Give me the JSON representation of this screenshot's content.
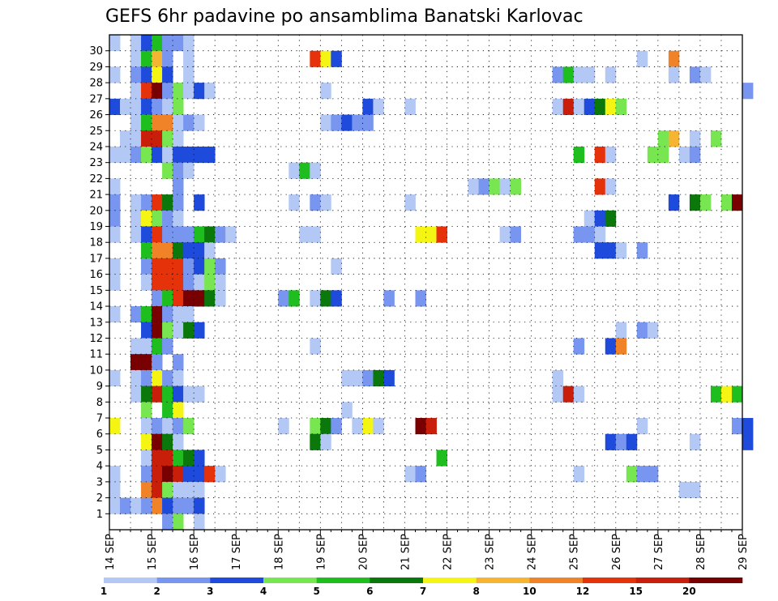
{
  "chart_data": {
    "type": "heatmap",
    "title": "GEFS 6hr padavine po ansamblima Banatski Karlovac",
    "x_labels": [
      "14 SEP",
      "15 SEP",
      "16 SEP",
      "17 SEP",
      "18 SEP",
      "19 SEP",
      "20 SEP",
      "21 SEP",
      "22 SEP",
      "23 SEP",
      "24 SEP",
      "25 SEP",
      "26 SEP",
      "27 SEP",
      "28 SEP",
      "29 SEP"
    ],
    "y_labels": [
      "1",
      "2",
      "3",
      "4",
      "5",
      "6",
      "7",
      "8",
      "9",
      "10",
      "11",
      "12",
      "13",
      "14",
      "15",
      "16",
      "17",
      "18",
      "19",
      "20",
      "21",
      "22",
      "23",
      "24",
      "25",
      "26",
      "27",
      "28",
      "29",
      "30"
    ],
    "x_unit": "6h step (4 per day)",
    "y_unit": "ensemble member",
    "grid": "dotted",
    "colorbar": {
      "levels": [
        "1",
        "2",
        "3",
        "4",
        "5",
        "6",
        "7",
        "8",
        "10",
        "12",
        "15",
        "20"
      ],
      "colors": [
        "#b4c8f5",
        "#7896f0",
        "#1e4bdc",
        "#78e650",
        "#1ebe1e",
        "#0a780a",
        "#f5f514",
        "#f5b432",
        "#f08228",
        "#e6320a",
        "#c81e0a",
        "#780000"
      ]
    },
    "points": [
      [
        0,
        30,
        1
      ],
      [
        2,
        30,
        1
      ],
      [
        3,
        30,
        3
      ],
      [
        4,
        30,
        5
      ],
      [
        5,
        30,
        2
      ],
      [
        6,
        30,
        2
      ],
      [
        7,
        30,
        1
      ],
      [
        2,
        29,
        1
      ],
      [
        3,
        29,
        5
      ],
      [
        4,
        29,
        8
      ],
      [
        5,
        29,
        2
      ],
      [
        7,
        29,
        1
      ],
      [
        19,
        29,
        10
      ],
      [
        20,
        29,
        7
      ],
      [
        21,
        29,
        3
      ],
      [
        50,
        29,
        1
      ],
      [
        53,
        29,
        9
      ],
      [
        0,
        28,
        1
      ],
      [
        2,
        28,
        2
      ],
      [
        3,
        28,
        3
      ],
      [
        4,
        28,
        7
      ],
      [
        5,
        28,
        3
      ],
      [
        7,
        28,
        1
      ],
      [
        42,
        28,
        2
      ],
      [
        43,
        28,
        5
      ],
      [
        44,
        28,
        1
      ],
      [
        45,
        28,
        1
      ],
      [
        47,
        28,
        1
      ],
      [
        53,
        28,
        1
      ],
      [
        55,
        28,
        2
      ],
      [
        56,
        28,
        1
      ],
      [
        2,
        27,
        1
      ],
      [
        3,
        27,
        10
      ],
      [
        4,
        27,
        12
      ],
      [
        5,
        27,
        2
      ],
      [
        6,
        27,
        4
      ],
      [
        7,
        27,
        1
      ],
      [
        8,
        27,
        3
      ],
      [
        9,
        27,
        1
      ],
      [
        20,
        27,
        1
      ],
      [
        60,
        27,
        2
      ],
      [
        0,
        26,
        3
      ],
      [
        1,
        26,
        1
      ],
      [
        2,
        26,
        1
      ],
      [
        3,
        26,
        3
      ],
      [
        4,
        26,
        2
      ],
      [
        5,
        26,
        1
      ],
      [
        6,
        26,
        4
      ],
      [
        24,
        26,
        3
      ],
      [
        25,
        26,
        1
      ],
      [
        28,
        26,
        1
      ],
      [
        42,
        26,
        1
      ],
      [
        43,
        26,
        11
      ],
      [
        44,
        26,
        1
      ],
      [
        45,
        26,
        3
      ],
      [
        46,
        26,
        6
      ],
      [
        47,
        26,
        7
      ],
      [
        48,
        26,
        4
      ],
      [
        2,
        25,
        1
      ],
      [
        3,
        25,
        5
      ],
      [
        4,
        25,
        9
      ],
      [
        5,
        25,
        9
      ],
      [
        6,
        25,
        1
      ],
      [
        7,
        25,
        2
      ],
      [
        8,
        25,
        1
      ],
      [
        20,
        25,
        1
      ],
      [
        21,
        25,
        2
      ],
      [
        22,
        25,
        3
      ],
      [
        23,
        25,
        2
      ],
      [
        24,
        25,
        2
      ],
      [
        1,
        24,
        1
      ],
      [
        2,
        24,
        1
      ],
      [
        3,
        24,
        11
      ],
      [
        4,
        24,
        11
      ],
      [
        5,
        24,
        4
      ],
      [
        6,
        24,
        1
      ],
      [
        52,
        24,
        4
      ],
      [
        53,
        24,
        8
      ],
      [
        55,
        24,
        1
      ],
      [
        57,
        24,
        4
      ],
      [
        0,
        23,
        1
      ],
      [
        1,
        23,
        1
      ],
      [
        2,
        23,
        2
      ],
      [
        3,
        23,
        4
      ],
      [
        4,
        23,
        3
      ],
      [
        5,
        23,
        1
      ],
      [
        6,
        23,
        3
      ],
      [
        7,
        23,
        3
      ],
      [
        8,
        23,
        3
      ],
      [
        9,
        23,
        3
      ],
      [
        44,
        23,
        5
      ],
      [
        46,
        23,
        10
      ],
      [
        47,
        23,
        1
      ],
      [
        51,
        23,
        4
      ],
      [
        52,
        23,
        4
      ],
      [
        54,
        23,
        1
      ],
      [
        55,
        23,
        2
      ],
      [
        5,
        22,
        4
      ],
      [
        6,
        22,
        2
      ],
      [
        7,
        22,
        1
      ],
      [
        17,
        22,
        1
      ],
      [
        18,
        22,
        5
      ],
      [
        19,
        22,
        1
      ],
      [
        0,
        21,
        1
      ],
      [
        6,
        21,
        2
      ],
      [
        34,
        21,
        1
      ],
      [
        35,
        21,
        2
      ],
      [
        36,
        21,
        4
      ],
      [
        37,
        21,
        1
      ],
      [
        38,
        21,
        4
      ],
      [
        46,
        21,
        10
      ],
      [
        47,
        21,
        1
      ],
      [
        0,
        20,
        2
      ],
      [
        2,
        20,
        1
      ],
      [
        3,
        20,
        2
      ],
      [
        4,
        20,
        10
      ],
      [
        5,
        20,
        6
      ],
      [
        6,
        20,
        2
      ],
      [
        8,
        20,
        3
      ],
      [
        17,
        20,
        1
      ],
      [
        19,
        20,
        2
      ],
      [
        20,
        20,
        1
      ],
      [
        28,
        20,
        1
      ],
      [
        53,
        20,
        3
      ],
      [
        55,
        20,
        6
      ],
      [
        56,
        20,
        4
      ],
      [
        58,
        20,
        4
      ],
      [
        59,
        20,
        12
      ],
      [
        0,
        19,
        2
      ],
      [
        2,
        19,
        1
      ],
      [
        3,
        19,
        7
      ],
      [
        4,
        19,
        4
      ],
      [
        5,
        19,
        2
      ],
      [
        6,
        19,
        1
      ],
      [
        45,
        19,
        1
      ],
      [
        46,
        19,
        3
      ],
      [
        47,
        19,
        6
      ],
      [
        0,
        18,
        1
      ],
      [
        2,
        18,
        1
      ],
      [
        3,
        18,
        3
      ],
      [
        4,
        18,
        10
      ],
      [
        5,
        18,
        2
      ],
      [
        6,
        18,
        2
      ],
      [
        7,
        18,
        2
      ],
      [
        8,
        18,
        5
      ],
      [
        9,
        18,
        6
      ],
      [
        10,
        18,
        2
      ],
      [
        11,
        18,
        1
      ],
      [
        18,
        18,
        1
      ],
      [
        19,
        18,
        1
      ],
      [
        29,
        18,
        7
      ],
      [
        30,
        18,
        7
      ],
      [
        31,
        18,
        10
      ],
      [
        37,
        18,
        1
      ],
      [
        38,
        18,
        2
      ],
      [
        44,
        18,
        2
      ],
      [
        45,
        18,
        2
      ],
      [
        46,
        18,
        1
      ],
      [
        3,
        17,
        5
      ],
      [
        4,
        17,
        9
      ],
      [
        5,
        17,
        9
      ],
      [
        6,
        17,
        6
      ],
      [
        7,
        17,
        3
      ],
      [
        8,
        17,
        3
      ],
      [
        9,
        17,
        1
      ],
      [
        46,
        17,
        3
      ],
      [
        47,
        17,
        3
      ],
      [
        48,
        17,
        1
      ],
      [
        50,
        17,
        2
      ],
      [
        0,
        16,
        1
      ],
      [
        3,
        16,
        2
      ],
      [
        4,
        16,
        10
      ],
      [
        5,
        16,
        10
      ],
      [
        6,
        16,
        10
      ],
      [
        7,
        16,
        2
      ],
      [
        8,
        16,
        3
      ],
      [
        9,
        16,
        4
      ],
      [
        10,
        16,
        2
      ],
      [
        21,
        16,
        1
      ],
      [
        0,
        15,
        1
      ],
      [
        3,
        15,
        1
      ],
      [
        4,
        15,
        10
      ],
      [
        5,
        15,
        10
      ],
      [
        6,
        15,
        10
      ],
      [
        7,
        15,
        2
      ],
      [
        8,
        15,
        1
      ],
      [
        9,
        15,
        4
      ],
      [
        10,
        15,
        1
      ],
      [
        4,
        14,
        2
      ],
      [
        5,
        14,
        5
      ],
      [
        6,
        14,
        10
      ],
      [
        7,
        14,
        12
      ],
      [
        8,
        14,
        12
      ],
      [
        9,
        14,
        6
      ],
      [
        10,
        14,
        1
      ],
      [
        16,
        14,
        2
      ],
      [
        17,
        14,
        5
      ],
      [
        19,
        14,
        1
      ],
      [
        20,
        14,
        6
      ],
      [
        21,
        14,
        3
      ],
      [
        26,
        14,
        2
      ],
      [
        29,
        14,
        2
      ],
      [
        0,
        13,
        1
      ],
      [
        2,
        13,
        2
      ],
      [
        3,
        13,
        5
      ],
      [
        4,
        13,
        12
      ],
      [
        5,
        13,
        2
      ],
      [
        6,
        13,
        1
      ],
      [
        7,
        13,
        1
      ],
      [
        3,
        12,
        3
      ],
      [
        4,
        12,
        12
      ],
      [
        5,
        12,
        4
      ],
      [
        6,
        12,
        1
      ],
      [
        7,
        12,
        6
      ],
      [
        8,
        12,
        3
      ],
      [
        48,
        12,
        1
      ],
      [
        50,
        12,
        2
      ],
      [
        51,
        12,
        1
      ],
      [
        2,
        11,
        1
      ],
      [
        3,
        11,
        1
      ],
      [
        4,
        11,
        5
      ],
      [
        5,
        11,
        2
      ],
      [
        19,
        11,
        1
      ],
      [
        44,
        11,
        2
      ],
      [
        47,
        11,
        3
      ],
      [
        48,
        11,
        9
      ],
      [
        2,
        10,
        12
      ],
      [
        3,
        10,
        12
      ],
      [
        4,
        10,
        2
      ],
      [
        6,
        10,
        2
      ],
      [
        0,
        9,
        1
      ],
      [
        2,
        9,
        1
      ],
      [
        3,
        9,
        2
      ],
      [
        4,
        9,
        7
      ],
      [
        5,
        9,
        2
      ],
      [
        6,
        9,
        1
      ],
      [
        22,
        9,
        1
      ],
      [
        23,
        9,
        1
      ],
      [
        24,
        9,
        2
      ],
      [
        25,
        9,
        6
      ],
      [
        26,
        9,
        3
      ],
      [
        42,
        9,
        1
      ],
      [
        2,
        8,
        1
      ],
      [
        3,
        8,
        6
      ],
      [
        4,
        8,
        11
      ],
      [
        5,
        8,
        5
      ],
      [
        6,
        8,
        3
      ],
      [
        7,
        8,
        1
      ],
      [
        8,
        8,
        1
      ],
      [
        42,
        8,
        1
      ],
      [
        43,
        8,
        11
      ],
      [
        44,
        8,
        1
      ],
      [
        57,
        8,
        5
      ],
      [
        58,
        8,
        7
      ],
      [
        59,
        8,
        5
      ],
      [
        3,
        7,
        4
      ],
      [
        5,
        7,
        5
      ],
      [
        6,
        7,
        7
      ],
      [
        22,
        7,
        1
      ],
      [
        0,
        6,
        7
      ],
      [
        3,
        6,
        1
      ],
      [
        4,
        6,
        2
      ],
      [
        5,
        6,
        1
      ],
      [
        6,
        6,
        2
      ],
      [
        7,
        6,
        4
      ],
      [
        16,
        6,
        1
      ],
      [
        19,
        6,
        4
      ],
      [
        20,
        6,
        6
      ],
      [
        21,
        6,
        2
      ],
      [
        23,
        6,
        1
      ],
      [
        24,
        6,
        7
      ],
      [
        25,
        6,
        1
      ],
      [
        29,
        6,
        12
      ],
      [
        30,
        6,
        11
      ],
      [
        50,
        6,
        1
      ],
      [
        59,
        6,
        2
      ],
      [
        60,
        6,
        3
      ],
      [
        3,
        5,
        7
      ],
      [
        4,
        5,
        12
      ],
      [
        5,
        5,
        6
      ],
      [
        6,
        5,
        1
      ],
      [
        19,
        5,
        6
      ],
      [
        20,
        5,
        1
      ],
      [
        47,
        5,
        3
      ],
      [
        48,
        5,
        2
      ],
      [
        49,
        5,
        3
      ],
      [
        55,
        5,
        1
      ],
      [
        60,
        5,
        3
      ],
      [
        3,
        4,
        1
      ],
      [
        4,
        4,
        11
      ],
      [
        5,
        4,
        11
      ],
      [
        6,
        4,
        5
      ],
      [
        7,
        4,
        6
      ],
      [
        8,
        4,
        3
      ],
      [
        31,
        4,
        5
      ],
      [
        0,
        3,
        1
      ],
      [
        3,
        3,
        2
      ],
      [
        4,
        3,
        11
      ],
      [
        5,
        3,
        12
      ],
      [
        6,
        3,
        11
      ],
      [
        7,
        3,
        3
      ],
      [
        8,
        3,
        3
      ],
      [
        9,
        3,
        10
      ],
      [
        10,
        3,
        1
      ],
      [
        28,
        3,
        1
      ],
      [
        29,
        3,
        2
      ],
      [
        44,
        3,
        1
      ],
      [
        49,
        3,
        4
      ],
      [
        50,
        3,
        2
      ],
      [
        51,
        3,
        2
      ],
      [
        0,
        2,
        1
      ],
      [
        3,
        2,
        9
      ],
      [
        4,
        2,
        11
      ],
      [
        5,
        2,
        4
      ],
      [
        6,
        2,
        1
      ],
      [
        7,
        2,
        1
      ],
      [
        8,
        2,
        1
      ],
      [
        54,
        2,
        1
      ],
      [
        55,
        2,
        1
      ],
      [
        0,
        1,
        1
      ],
      [
        1,
        1,
        2
      ],
      [
        2,
        1,
        1
      ],
      [
        3,
        1,
        2
      ],
      [
        4,
        1,
        9
      ],
      [
        5,
        1,
        3
      ],
      [
        6,
        1,
        2
      ],
      [
        7,
        1,
        2
      ],
      [
        8,
        1,
        3
      ],
      [
        5,
        0,
        2
      ],
      [
        6,
        0,
        4
      ],
      [
        8,
        0,
        1
      ]
    ]
  }
}
